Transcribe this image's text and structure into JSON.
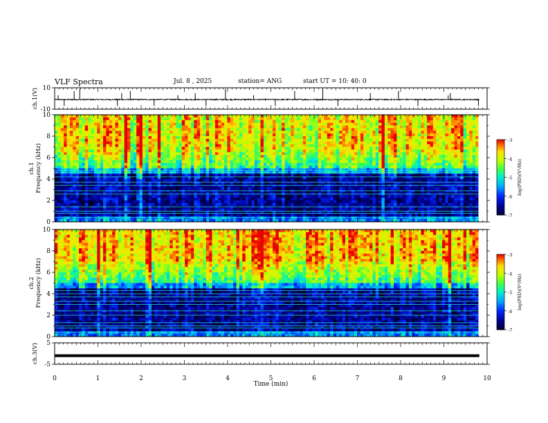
{
  "header": {
    "title": "VLF Spectra",
    "date": "Jul. 8 , 2025",
    "station": "station= ANG",
    "start": "start UT = 10: 40: 0"
  },
  "colors": {
    "spectrogram": [
      "#00003a",
      "#0000c8",
      "#0070ff",
      "#00e0ff",
      "#40ff80",
      "#c8ff00",
      "#ffe000",
      "#ff2000"
    ],
    "trace": "#000000",
    "axes": "#000000"
  },
  "chart_data": [
    {
      "type": "line",
      "name": "ch1-waveform",
      "ylabel": "ch.1(V)",
      "ylim": [
        -10,
        10
      ],
      "yticks": [
        "10",
        "-10"
      ],
      "xlim": [
        0,
        10
      ],
      "description_level": "noisy trace near -1 V with sparse spikes",
      "baseline": -1,
      "spike_x": [
        0.08,
        0.22,
        0.45,
        0.58,
        1.45,
        1.55,
        1.75,
        2.3,
        2.85,
        3.25,
        3.5,
        3.95,
        4.6,
        5.1,
        5.55,
        6.2,
        6.55,
        7.3,
        7.95,
        8.4,
        9.1,
        9.15,
        9.8
      ]
    },
    {
      "type": "heatmap",
      "name": "ch1-spectrogram",
      "ylabel": "ch.1 Frequency (kHz)",
      "ylim": [
        0,
        10
      ],
      "yticks": [
        "0",
        "2",
        "4",
        "6",
        "8",
        "10"
      ],
      "xlim": [
        0,
        9.8
      ],
      "colorbar": {
        "label": "log(PSD)(V²/Hz)",
        "range": [
          -7,
          -3
        ],
        "ticks": [
          "-3",
          "-4",
          "-5",
          "-6",
          "-7"
        ]
      },
      "lines_khz": [
        0.4,
        0.8,
        1.0,
        1.4,
        2.6,
        2.9,
        3.4,
        3.7,
        4.2,
        4.6,
        4.8
      ]
    },
    {
      "type": "heatmap",
      "name": "ch2-spectrogram",
      "ylabel": "ch.2 Frequency (kHz)",
      "ylim": [
        0,
        10
      ],
      "yticks": [
        "0",
        "2",
        "4",
        "6",
        "8",
        "10"
      ],
      "xlim": [
        0,
        9.8
      ],
      "colorbar": {
        "label": "log(PSD)(V²/Hz)",
        "range": [
          -7,
          -3
        ],
        "ticks": [
          "-3",
          "-4",
          "-5",
          "-6",
          "-7"
        ]
      },
      "lines_khz": [
        0.4,
        0.8,
        1.0,
        1.3,
        2.0,
        2.4,
        3.0,
        3.3,
        3.7,
        4.0,
        4.3
      ]
    },
    {
      "type": "line",
      "name": "ch3-waveform",
      "ylabel": "ch.3(V)",
      "ylim": [
        -5,
        5
      ],
      "yticks": [
        "5",
        "-5"
      ],
      "xlim": [
        0,
        10
      ],
      "baseline": -1
    }
  ],
  "xaxis": {
    "label": "Time (min)",
    "ticks": [
      "0",
      "1",
      "2",
      "3",
      "4",
      "5",
      "6",
      "7",
      "8",
      "9",
      "10"
    ]
  }
}
